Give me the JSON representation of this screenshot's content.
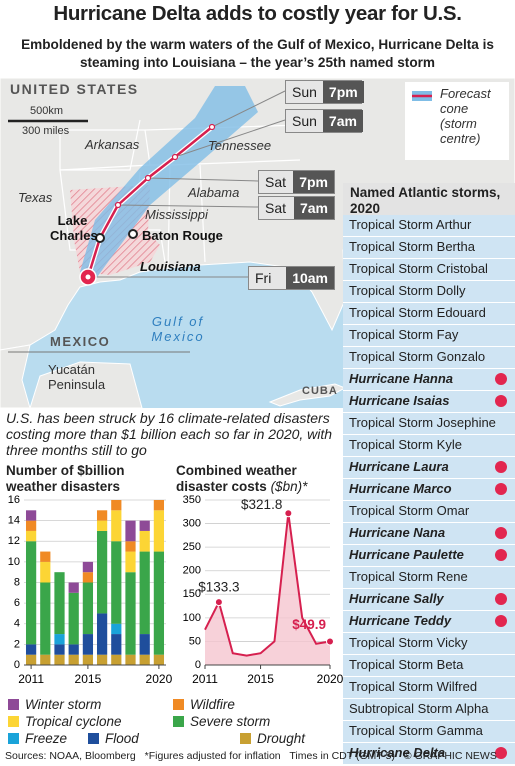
{
  "header": {
    "title": "Hurricane Delta adds to costly year for U.S.",
    "subtitle": "Emboldened by the warm waters of the Gulf of Mexico, Hurricane Delta is steaming into Louisiana – the year’s 25th named storm"
  },
  "map": {
    "country": "UNITED STATES",
    "scale_km": "500km",
    "scale_miles": "300 miles",
    "arkansas": "Arkansas",
    "tennessee": "Tennessee",
    "texas": "Texas",
    "alabama": "Alabama",
    "mississippi": "Mississippi",
    "louisiana": "Louisiana",
    "lake_charles": "Lake Charles",
    "baton_rouge": "Baton Rouge",
    "mexico": "MEXICO",
    "gulf": "Gulf of Mexico",
    "yucatan": "Yucatán Peninsula",
    "cuba": "CUBA",
    "legend": "Forecast cone (storm centre)",
    "forecast_times": [
      {
        "day": "Sun",
        "time": "7pm"
      },
      {
        "day": "Sun",
        "time": "7am"
      },
      {
        "day": "Sat",
        "time": "7pm"
      },
      {
        "day": "Sat",
        "time": "7am"
      },
      {
        "day": "Fri",
        "time": "10am"
      }
    ]
  },
  "storms": {
    "title": "Named Atlantic storms, 2020",
    "items": [
      {
        "name": "Tropical Storm Arthur",
        "hurricane": false
      },
      {
        "name": "Tropical Storm Bertha",
        "hurricane": false
      },
      {
        "name": "Tropical Storm Cristobal",
        "hurricane": false
      },
      {
        "name": "Tropical Storm Dolly",
        "hurricane": false
      },
      {
        "name": "Tropical Storm Edouard",
        "hurricane": false
      },
      {
        "name": "Tropical Storm Fay",
        "hurricane": false
      },
      {
        "name": "Tropical Storm Gonzalo",
        "hurricane": false
      },
      {
        "name": "Hurricane Hanna",
        "hurricane": true
      },
      {
        "name": "Hurricane Isaias",
        "hurricane": true
      },
      {
        "name": "Tropical Storm Josephine",
        "hurricane": false
      },
      {
        "name": "Tropical Storm Kyle",
        "hurricane": false
      },
      {
        "name": "Hurricane Laura",
        "hurricane": true
      },
      {
        "name": "Hurricane Marco",
        "hurricane": true
      },
      {
        "name": "Tropical Storm Omar",
        "hurricane": false
      },
      {
        "name": "Hurricane Nana",
        "hurricane": true
      },
      {
        "name": "Hurricane Paulette",
        "hurricane": true
      },
      {
        "name": "Tropical Storm Rene",
        "hurricane": false
      },
      {
        "name": "Hurricane Sally",
        "hurricane": true
      },
      {
        "name": "Hurricane Teddy",
        "hurricane": true
      },
      {
        "name": "Tropical Storm Vicky",
        "hurricane": false
      },
      {
        "name": "Tropical Storm Beta",
        "hurricane": false
      },
      {
        "name": "Tropical Storm Wilfred",
        "hurricane": false
      },
      {
        "name": "Subtropical Storm Alpha",
        "hurricane": false
      },
      {
        "name": "Tropical Storm Gamma",
        "hurricane": false
      },
      {
        "name": "Hurricane Delta",
        "hurricane": true
      }
    ]
  },
  "note": "U.S. has been struck by 16 climate-related disasters costing more than $1 billion each so far in 2020, with three months still to go",
  "chart_data": [
    {
      "type": "bar",
      "title": "Number of $billion weather disasters",
      "categories": [
        "2011",
        null,
        null,
        null,
        "2015",
        null,
        null,
        null,
        null,
        "2020"
      ],
      "series": [
        {
          "name": "Winter storm",
          "color": "#8e4a97",
          "values": [
            1,
            0,
            0,
            1,
            1,
            0,
            0,
            2,
            1,
            0
          ]
        },
        {
          "name": "Wildfire",
          "color": "#f08a24",
          "values": [
            1,
            1,
            0,
            0,
            1,
            1,
            1,
            1,
            0,
            1
          ]
        },
        {
          "name": "Tropical cyclone",
          "color": "#fcd535",
          "values": [
            1,
            2,
            0,
            0,
            0,
            1,
            3,
            2,
            2,
            4
          ]
        },
        {
          "name": "Severe storm",
          "color": "#3aa64a",
          "values": [
            10,
            7,
            6,
            5,
            5,
            8,
            8,
            8,
            8,
            10
          ]
        },
        {
          "name": "Freeze",
          "color": "#1aa3d9",
          "values": [
            0,
            0,
            1,
            0,
            0,
            0,
            1,
            0,
            0,
            0
          ]
        },
        {
          "name": "Flood",
          "color": "#1f4e9c",
          "values": [
            1,
            0,
            1,
            1,
            2,
            4,
            2,
            0,
            2,
            0
          ]
        },
        {
          "name": "Drought",
          "color": "#c8a032",
          "values": [
            1,
            1,
            1,
            1,
            1,
            1,
            1,
            1,
            1,
            1
          ]
        }
      ],
      "ylim": [
        0,
        16
      ],
      "yticks": [
        0,
        2,
        4,
        6,
        8,
        10,
        12,
        14,
        16
      ],
      "grid": true
    },
    {
      "type": "line",
      "title": "Combined weather disaster costs",
      "unit": "($bn)*",
      "x": [
        2011,
        2012,
        2013,
        2014,
        2015,
        2016,
        2017,
        2018,
        2019,
        2020
      ],
      "values": [
        75,
        133.3,
        25,
        20,
        25,
        50,
        321.8,
        100,
        45,
        49.9
      ],
      "value_labels": [
        null,
        "$133.3",
        null,
        null,
        null,
        null,
        "$321.8",
        null,
        null,
        "$49.9"
      ],
      "color": "#d6204f",
      "xlim": [
        2011,
        2020
      ],
      "xticks": [
        2011,
        2015,
        2020
      ],
      "ylim": [
        0,
        350
      ],
      "yticks": [
        0,
        50,
        100,
        150,
        200,
        250,
        300,
        350
      ],
      "grid": true
    }
  ],
  "footer": {
    "sources": "Sources: NOAA, Bloomberg",
    "footnote": "*Figures adjusted for inflation",
    "times": "Times in CDT (GMT-5)",
    "credit": "© GRAPHIC NEWS"
  }
}
